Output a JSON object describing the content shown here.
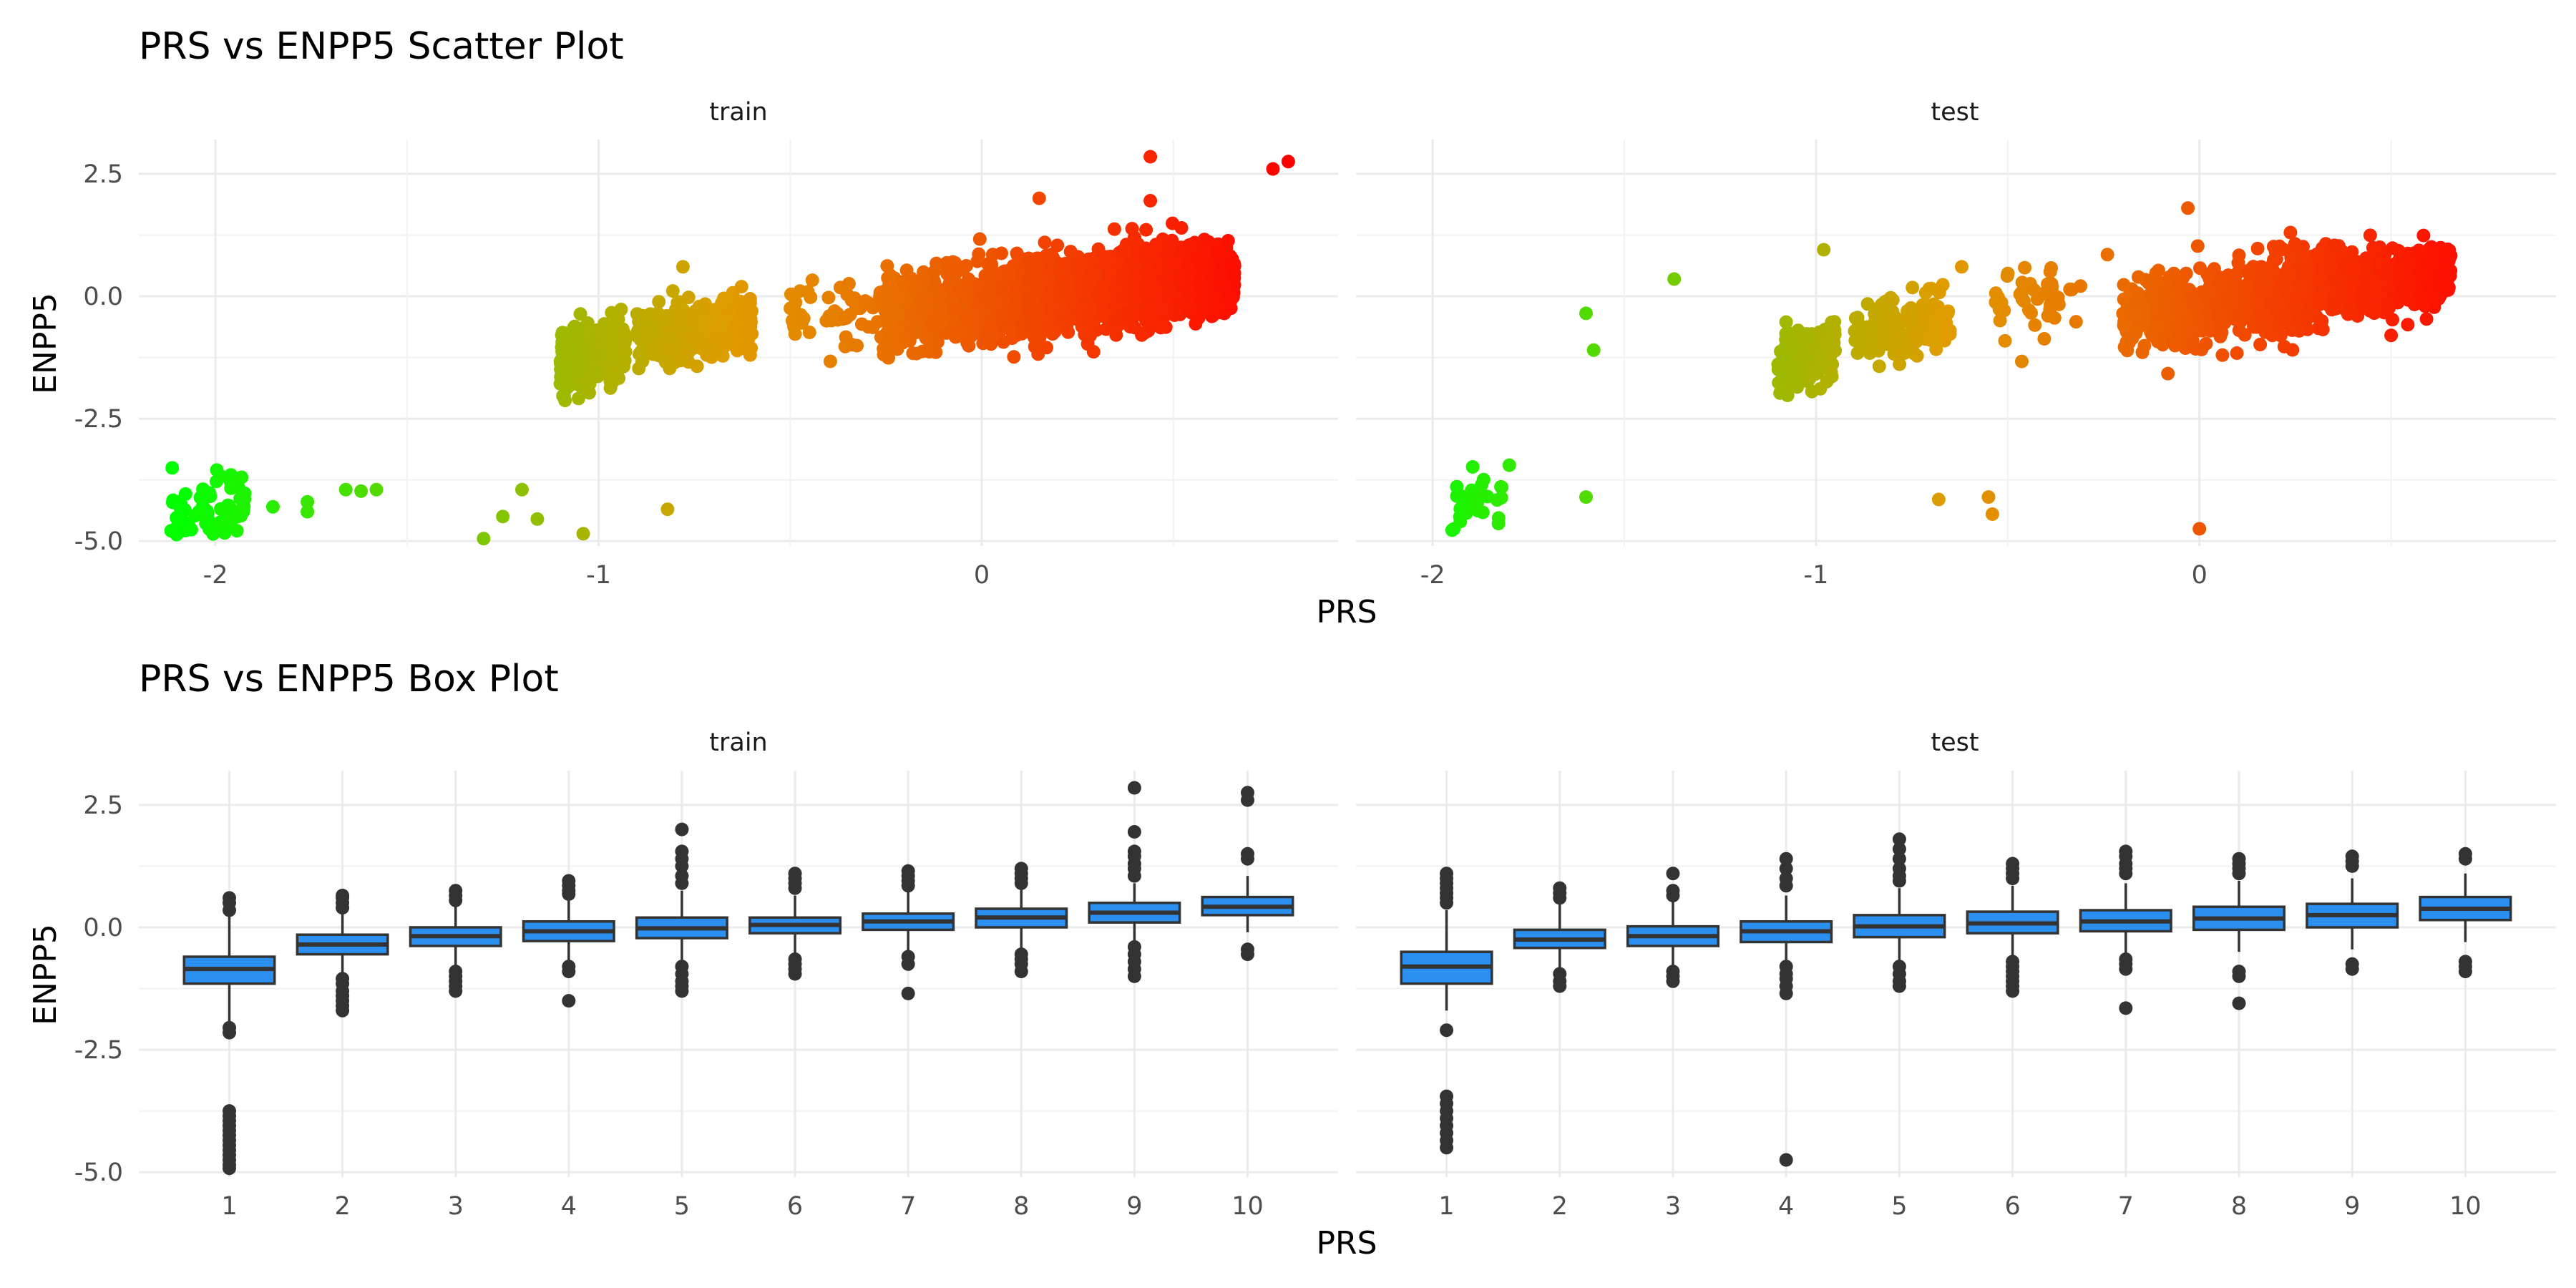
{
  "colors": {
    "low": "#00ff00",
    "mid": "#e09c00",
    "high": "#ff0000",
    "box_fill": "#2b8ff0",
    "box_line": "#333333",
    "grid_major": "#ebebeb",
    "grid_minor": "#f2f2f2"
  },
  "chart_data": [
    {
      "type": "scatter",
      "title": "PRS vs ENPP5 Scatter Plot",
      "xlabel": "PRS",
      "ylabel": "ENPP5",
      "xlim": [
        -2.2,
        0.93
      ],
      "ylim": [
        -5.1,
        3.2
      ],
      "x_ticks": [
        "-2",
        "-1",
        "0"
      ],
      "x_tick_values": [
        -2,
        -1,
        0
      ],
      "y_ticks": [
        "2.5",
        "0.0",
        "-2.5",
        "-5.0"
      ],
      "y_tick_values": [
        2.5,
        0,
        -2.5,
        -5
      ],
      "color_by": "PRS",
      "color_scale": [
        "#00ff00",
        "#e09c00",
        "#ff0000"
      ],
      "facets": [
        {
          "label": "train",
          "clusters": [
            {
              "n": 70,
              "x": [
                -2.12,
                -1.92
              ],
              "y_center": -4.35,
              "y_spread": 0.35
            },
            {
              "n": 380,
              "x": [
                -1.1,
                -0.93
              ],
              "y_slope": 2.0,
              "y_ref_x": -1.0,
              "y_ref": -1.2,
              "y_spread": 0.3
            },
            {
              "n": 380,
              "x": [
                -0.9,
                -0.6
              ],
              "y_slope": 1.2,
              "y_ref_x": -0.75,
              "y_ref": -0.7,
              "y_spread": 0.3
            },
            {
              "n": 60,
              "x": [
                -0.5,
                -0.25
              ],
              "y_center": -0.4,
              "y_spread": 0.35
            },
            {
              "n": 800,
              "x": [
                -0.25,
                0.2
              ],
              "y_slope": 1.1,
              "y_ref_x": 0,
              "y_ref": -0.15,
              "y_spread": 0.38
            },
            {
              "n": 700,
              "x": [
                0.12,
                0.4
              ],
              "y_slope": 1.0,
              "y_ref_x": 0.26,
              "y_ref": 0.05,
              "y_spread": 0.38
            },
            {
              "n": 700,
              "x": [
                0.4,
                0.66
              ],
              "y_slope": 1.3,
              "y_ref_x": 0.52,
              "y_ref": 0.3,
              "y_spread": 0.35
            }
          ],
          "outliers": [
            {
              "x": -1.96,
              "y": -3.8
            },
            {
              "x": -1.85,
              "y": -4.3
            },
            {
              "x": -1.76,
              "y": -4.2
            },
            {
              "x": -1.76,
              "y": -4.4
            },
            {
              "x": -1.66,
              "y": -3.95
            },
            {
              "x": -1.62,
              "y": -3.98
            },
            {
              "x": -1.58,
              "y": -3.95
            },
            {
              "x": -1.3,
              "y": -4.95
            },
            {
              "x": -1.25,
              "y": -4.5
            },
            {
              "x": -1.2,
              "y": -3.95
            },
            {
              "x": -1.16,
              "y": -4.55
            },
            {
              "x": -1.04,
              "y": -4.85
            },
            {
              "x": -0.82,
              "y": -4.35
            },
            {
              "x": -0.78,
              "y": 0.6
            },
            {
              "x": 0.15,
              "y": 2.0
            },
            {
              "x": 0.44,
              "y": 2.85
            },
            {
              "x": 0.44,
              "y": 1.95
            },
            {
              "x": 0.76,
              "y": 2.6
            },
            {
              "x": 0.8,
              "y": 2.75
            }
          ]
        },
        {
          "label": "test",
          "clusters": [
            {
              "n": 28,
              "x": [
                -1.95,
                -1.82
              ],
              "y_center": -4.15,
              "y_spread": 0.3
            },
            {
              "n": 160,
              "x": [
                -1.1,
                -0.95
              ],
              "y_slope": 2.0,
              "y_ref_x": -1.0,
              "y_ref": -1.2,
              "y_spread": 0.3
            },
            {
              "n": 150,
              "x": [
                -0.9,
                -0.65
              ],
              "y_slope": 1.2,
              "y_ref_x": -0.75,
              "y_ref": -0.6,
              "y_spread": 0.32
            },
            {
              "n": 45,
              "x": [
                -0.55,
                -0.3
              ],
              "y_center": -0.1,
              "y_spread": 0.4
            },
            {
              "n": 380,
              "x": [
                -0.2,
                0.15
              ],
              "y_slope": 1.0,
              "y_ref_x": 0,
              "y_ref": -0.2,
              "y_spread": 0.38
            },
            {
              "n": 350,
              "x": [
                0.15,
                0.4
              ],
              "y_slope": 1.0,
              "y_ref_x": 0.27,
              "y_ref": 0.1,
              "y_spread": 0.4
            },
            {
              "n": 320,
              "x": [
                0.4,
                0.66
              ],
              "y_slope": 1.2,
              "y_ref_x": 0.52,
              "y_ref": 0.35,
              "y_spread": 0.32
            }
          ],
          "outliers": [
            {
              "x": -1.6,
              "y": -0.35
            },
            {
              "x": -1.58,
              "y": -1.1
            },
            {
              "x": -1.37,
              "y": 0.35
            },
            {
              "x": -1.8,
              "y": -3.45
            },
            {
              "x": -1.82,
              "y": -3.9
            },
            {
              "x": -1.6,
              "y": -4.1
            },
            {
              "x": -0.68,
              "y": -4.15
            },
            {
              "x": -0.55,
              "y": -4.1
            },
            {
              "x": -0.54,
              "y": -4.45
            },
            {
              "x": 0.0,
              "y": -4.75
            },
            {
              "x": -0.98,
              "y": 0.95
            },
            {
              "x": -0.24,
              "y": 0.85
            },
            {
              "x": -0.03,
              "y": 1.8
            },
            {
              "x": 0.5,
              "y": -0.8
            },
            {
              "x": -0.62,
              "y": 0.6
            }
          ]
        }
      ]
    },
    {
      "type": "box",
      "title": "PRS vs ENPP5 Box Plot",
      "xlabel": "PRS",
      "ylabel": "ENPP5",
      "categories": [
        "1",
        "2",
        "3",
        "4",
        "5",
        "6",
        "7",
        "8",
        "9",
        "10"
      ],
      "ylim": [
        -5.1,
        3.2
      ],
      "y_ticks": [
        "2.5",
        "0.0",
        "-2.5",
        "-5.0"
      ],
      "y_tick_values": [
        2.5,
        0,
        -2.5,
        -5
      ],
      "facets": [
        {
          "label": "train",
          "boxes": [
            {
              "q1": -1.15,
              "median": -0.85,
              "q3": -0.6,
              "whisker_low": -1.95,
              "whisker_high": 0.25,
              "outliers": [
                0.6,
                0.5,
                0.35,
                -2.05,
                -2.15,
                -3.75,
                -3.85,
                -3.95,
                -4.05,
                -4.15,
                -4.25,
                -4.35,
                -4.45,
                -4.55,
                -4.65,
                -4.75,
                -4.85,
                -4.92
              ]
            },
            {
              "q1": -0.55,
              "median": -0.35,
              "q3": -0.15,
              "whisker_low": -0.95,
              "whisker_high": 0.35,
              "outliers": [
                0.65,
                0.6,
                0.5,
                0.4,
                -1.05,
                -1.15,
                -1.3,
                -1.4,
                -1.5,
                -1.6,
                -1.7
              ]
            },
            {
              "q1": -0.38,
              "median": -0.18,
              "q3": 0.0,
              "whisker_low": -0.8,
              "whisker_high": 0.5,
              "outliers": [
                0.75,
                0.65,
                0.55,
                -0.9,
                -1.0,
                -1.1,
                -1.2,
                -1.3
              ]
            },
            {
              "q1": -0.28,
              "median": -0.08,
              "q3": 0.12,
              "whisker_low": -0.75,
              "whisker_high": 0.6,
              "outliers": [
                0.95,
                0.85,
                0.75,
                0.68,
                -0.8,
                -0.9,
                -1.5
              ]
            },
            {
              "q1": -0.22,
              "median": -0.02,
              "q3": 0.2,
              "whisker_low": -0.7,
              "whisker_high": 0.75,
              "outliers": [
                2.0,
                1.55,
                1.4,
                1.25,
                1.05,
                0.9,
                -0.8,
                -0.95,
                -1.1,
                -1.2,
                -1.3
              ]
            },
            {
              "q1": -0.12,
              "median": 0.05,
              "q3": 0.2,
              "whisker_low": -0.6,
              "whisker_high": 0.65,
              "outliers": [
                1.1,
                1.0,
                0.9,
                0.8,
                -0.65,
                -0.75,
                -0.85,
                -0.95
              ]
            },
            {
              "q1": -0.05,
              "median": 0.12,
              "q3": 0.28,
              "whisker_low": -0.5,
              "whisker_high": 0.75,
              "outliers": [
                1.15,
                1.05,
                0.95,
                0.85,
                -0.6,
                -0.75,
                -1.35
              ]
            },
            {
              "q1": 0.0,
              "median": 0.2,
              "q3": 0.38,
              "whisker_low": -0.45,
              "whisker_high": 0.8,
              "outliers": [
                1.2,
                1.1,
                1.0,
                0.9,
                -0.55,
                -0.65,
                -0.75,
                -0.9
              ]
            },
            {
              "q1": 0.1,
              "median": 0.3,
              "q3": 0.5,
              "whisker_low": -0.3,
              "whisker_high": 0.9,
              "outliers": [
                2.85,
                1.95,
                1.55,
                1.45,
                1.3,
                1.2,
                1.05,
                -0.4,
                -0.55,
                -0.7,
                -0.85,
                -1.0
              ]
            },
            {
              "q1": 0.25,
              "median": 0.42,
              "q3": 0.62,
              "whisker_low": -0.1,
              "whisker_high": 1.05,
              "outliers": [
                2.75,
                2.6,
                1.5,
                1.4,
                -0.45,
                -0.55
              ]
            }
          ]
        },
        {
          "label": "test",
          "boxes": [
            {
              "q1": -1.15,
              "median": -0.8,
              "q3": -0.5,
              "whisker_low": -1.7,
              "whisker_high": 0.35,
              "outliers": [
                1.1,
                1.0,
                0.9,
                0.8,
                0.7,
                0.6,
                0.5,
                -2.1,
                -3.45,
                -3.6,
                -3.75,
                -3.9,
                -4.05,
                -4.2,
                -4.35,
                -4.5
              ]
            },
            {
              "q1": -0.42,
              "median": -0.25,
              "q3": -0.05,
              "whisker_low": -0.85,
              "whisker_high": 0.5,
              "outliers": [
                0.8,
                0.7,
                0.6,
                -0.95,
                -1.1,
                -1.2
              ]
            },
            {
              "q1": -0.38,
              "median": -0.18,
              "q3": 0.02,
              "whisker_low": -0.8,
              "whisker_high": 0.55,
              "outliers": [
                1.1,
                0.75,
                0.65,
                -0.9,
                -1.0,
                -1.1
              ]
            },
            {
              "q1": -0.3,
              "median": -0.08,
              "q3": 0.12,
              "whisker_low": -0.7,
              "whisker_high": 0.65,
              "outliers": [
                1.4,
                1.2,
                1.0,
                0.85,
                -0.8,
                -0.95,
                -1.05,
                -1.2,
                -1.35,
                -4.75
              ]
            },
            {
              "q1": -0.2,
              "median": 0.02,
              "q3": 0.25,
              "whisker_low": -0.7,
              "whisker_high": 0.8,
              "outliers": [
                1.8,
                1.6,
                1.4,
                1.2,
                1.05,
                0.95,
                -0.8,
                -0.95,
                -1.1,
                -1.2
              ]
            },
            {
              "q1": -0.12,
              "median": 0.08,
              "q3": 0.32,
              "whisker_low": -0.6,
              "whisker_high": 0.85,
              "outliers": [
                1.3,
                1.2,
                1.1,
                1.0,
                -0.7,
                -0.8,
                -0.9,
                -1.0,
                -1.1,
                -1.2,
                -1.3
              ]
            },
            {
              "q1": -0.08,
              "median": 0.12,
              "q3": 0.35,
              "whisker_low": -0.55,
              "whisker_high": 0.9,
              "outliers": [
                1.55,
                1.45,
                1.3,
                1.2,
                1.1,
                -0.65,
                -0.75,
                -0.85,
                -1.65
              ]
            },
            {
              "q1": -0.05,
              "median": 0.18,
              "q3": 0.42,
              "whisker_low": -0.5,
              "whisker_high": 0.95,
              "outliers": [
                1.4,
                1.3,
                1.2,
                1.1,
                -0.9,
                -1.0,
                -1.55
              ]
            },
            {
              "q1": 0.0,
              "median": 0.25,
              "q3": 0.48,
              "whisker_low": -0.45,
              "whisker_high": 1.0,
              "outliers": [
                1.45,
                1.35,
                1.25,
                -0.75,
                -0.85
              ]
            },
            {
              "q1": 0.15,
              "median": 0.38,
              "q3": 0.62,
              "whisker_low": -0.3,
              "whisker_high": 1.1,
              "outliers": [
                1.5,
                1.4,
                -0.7,
                -0.8,
                -0.9
              ]
            }
          ]
        }
      ]
    }
  ]
}
